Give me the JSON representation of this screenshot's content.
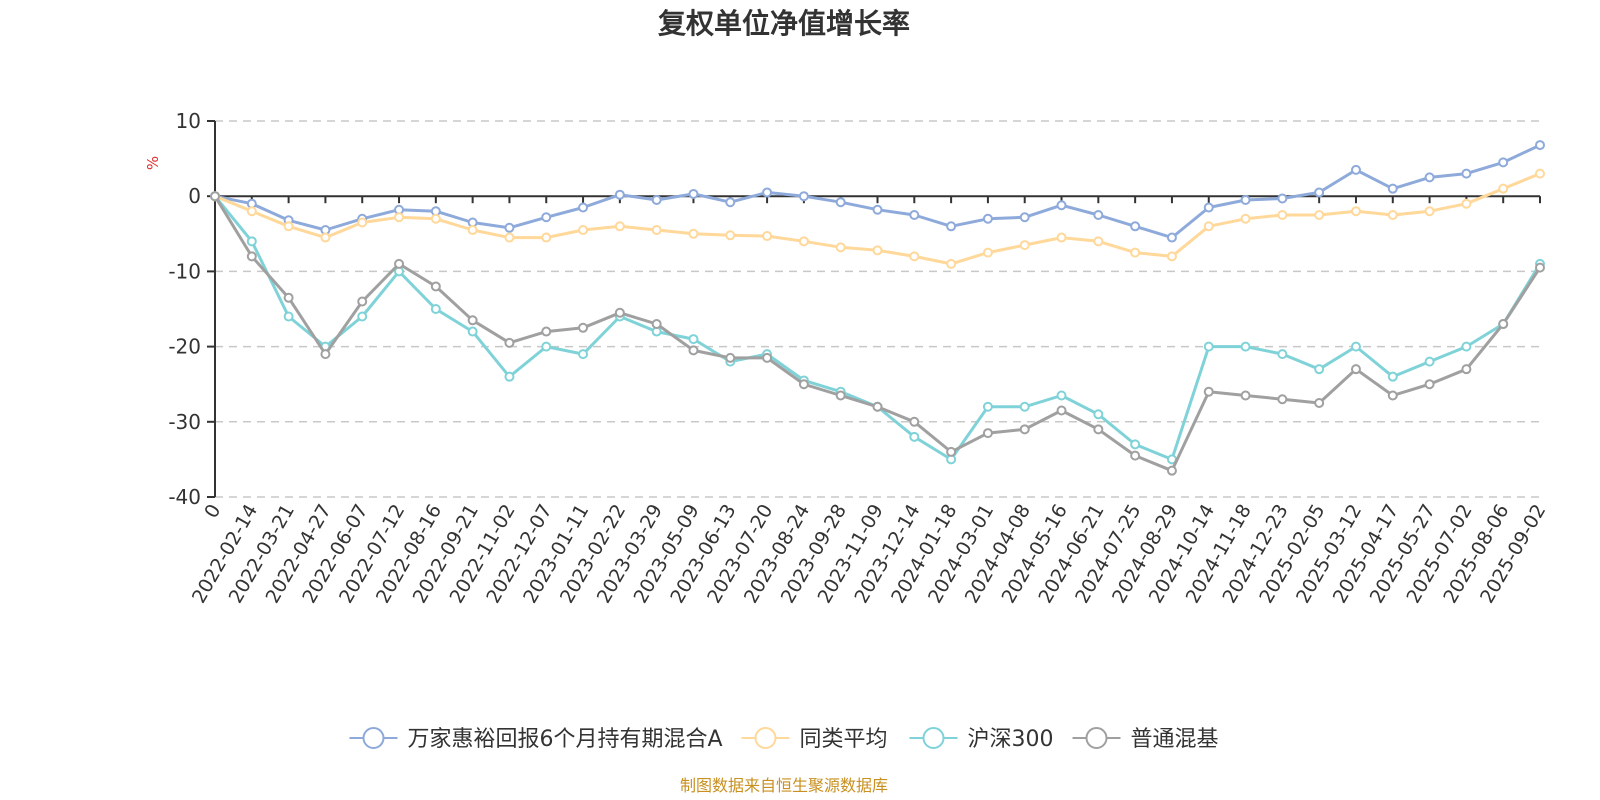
{
  "chart_data": {
    "type": "line",
    "title": "复权单位净值增长率",
    "y_unit": "%",
    "ylim": [
      -40,
      10
    ],
    "yticks": [
      10,
      0,
      -10,
      -20,
      -30,
      -40
    ],
    "x_start_label": "0",
    "x_tick_labels": [
      "2022-02-14",
      "2022-03-21",
      "2022-04-27",
      "2022-06-07",
      "2022-07-12",
      "2022-08-16",
      "2022-09-21",
      "2022-11-02",
      "2022-12-07",
      "2023-01-11",
      "2023-02-22",
      "2023-03-29",
      "2023-05-09",
      "2023-06-13",
      "2023-07-20",
      "2023-08-24",
      "2023-09-28",
      "2023-11-09",
      "2023-12-14",
      "2024-01-18",
      "2024-03-01",
      "2024-04-08",
      "2024-05-16",
      "2024-06-21",
      "2024-07-25",
      "2024-08-29",
      "2024-10-14",
      "2024-11-18",
      "2024-12-23",
      "2025-02-05",
      "2025-03-12",
      "2025-04-17",
      "2025-05-27",
      "2025-07-02",
      "2025-08-06",
      "2025-09-02"
    ],
    "x": [
      "0",
      "2022-02-14",
      "2022-03-21",
      "2022-04-27",
      "2022-06-07",
      "2022-07-12",
      "2022-08-16",
      "2022-09-21",
      "2022-11-02",
      "2022-12-07",
      "2023-01-11",
      "2023-02-22",
      "2023-03-29",
      "2023-05-09",
      "2023-06-13",
      "2023-07-20",
      "2023-08-24",
      "2023-09-28",
      "2023-11-09",
      "2023-12-14",
      "2024-01-18",
      "2024-03-01",
      "2024-04-08",
      "2024-05-16",
      "2024-06-21",
      "2024-07-25",
      "2024-08-29",
      "2024-10-14",
      "2024-11-18",
      "2024-12-23",
      "2025-02-05",
      "2025-03-12",
      "2025-04-17",
      "2025-05-27",
      "2025-07-02",
      "2025-08-06",
      "2025-09-02"
    ],
    "series": [
      {
        "name": "万家惠裕回报6个月持有期混合A",
        "color": "#8eaadb",
        "values": [
          0,
          -1,
          -3.2,
          -4.5,
          -3,
          -1.8,
          -2,
          -3.5,
          -4.2,
          -2.8,
          -1.5,
          0.2,
          -0.5,
          0.3,
          -0.8,
          0.5,
          0,
          -0.8,
          -1.8,
          -2.5,
          -4,
          -3,
          -2.8,
          -1.2,
          -2.5,
          -4,
          -5.5,
          -1.5,
          -0.5,
          -0.3,
          0.5,
          3.5,
          1,
          2.5,
          3,
          4.5,
          6.8
        ]
      },
      {
        "name": "同类平均",
        "color": "#ffd89a",
        "values": [
          0,
          -2,
          -4,
          -5.5,
          -3.5,
          -2.8,
          -3,
          -4.5,
          -5.5,
          -5.5,
          -4.5,
          -4,
          -4.5,
          -5,
          -5.2,
          -5.3,
          -6,
          -6.8,
          -7.2,
          -8,
          -9,
          -7.5,
          -6.5,
          -5.5,
          -6,
          -7.5,
          -8,
          -4,
          -3,
          -2.5,
          -2.5,
          -2,
          -2.5,
          -2,
          -1,
          1,
          3
        ]
      },
      {
        "name": "沪深300",
        "color": "#7fd3d8",
        "values": [
          0,
          -6,
          -16,
          -20,
          -16,
          -10,
          -15,
          -18,
          -24,
          -20,
          -21,
          -16,
          -18,
          -19,
          -22,
          -21,
          -24.5,
          -26,
          -28,
          -32,
          -35,
          -28,
          -28,
          -26.5,
          -29,
          -33,
          -35,
          -20,
          -20,
          -21,
          -23,
          -20,
          -24,
          -22,
          -20,
          -17,
          -9
        ]
      },
      {
        "name": "普通混基",
        "color": "#a0a0a0",
        "values": [
          0,
          -8,
          -13.5,
          -21,
          -14,
          -9,
          -12,
          -16.5,
          -19.5,
          -18,
          -17.5,
          -15.5,
          -17,
          -20.5,
          -21.5,
          -21.5,
          -25,
          -26.5,
          -28,
          -30,
          -34,
          -31.5,
          -31,
          -28.5,
          -31,
          -34.5,
          -36.5,
          -26,
          -26.5,
          -27,
          -27.5,
          -23,
          -26.5,
          -25,
          -23,
          -17,
          -9.5
        ]
      }
    ],
    "grid": true,
    "legend_position": "bottom",
    "source_note": "制图数据来自恒生聚源数据库"
  }
}
